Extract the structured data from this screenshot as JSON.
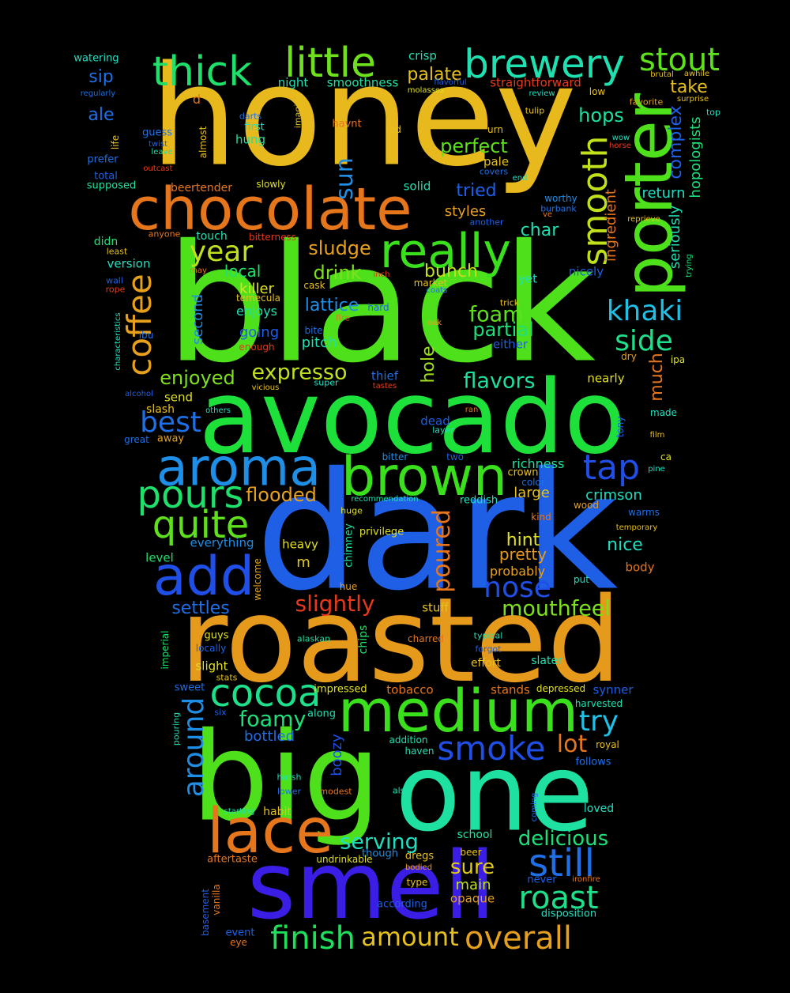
{
  "wordcloud": {
    "words": [
      {
        "text": "honey",
        "color": "#e8b91c"
      },
      {
        "text": "black",
        "color": "#4fe01c"
      },
      {
        "text": "dark",
        "color": "#1f5fe6"
      },
      {
        "text": "avocado",
        "color": "#1ee03a"
      },
      {
        "text": "roasted",
        "color": "#e69a1c"
      },
      {
        "text": "big",
        "color": "#4fe01c"
      },
      {
        "text": "one",
        "color": "#1ee0a0"
      },
      {
        "text": "smell",
        "color": "#3a1ee6"
      },
      {
        "text": "chocolate",
        "color": "#e6761c"
      },
      {
        "text": "porter",
        "color": "#4fe01c"
      },
      {
        "text": "brown",
        "color": "#3ae01c"
      },
      {
        "text": "aroma",
        "color": "#1e8ee6"
      },
      {
        "text": "medium",
        "color": "#3ae01c"
      },
      {
        "text": "lace",
        "color": "#e6761c"
      },
      {
        "text": "add",
        "color": "#1f4fe6"
      },
      {
        "text": "little",
        "color": "#6ee01c"
      },
      {
        "text": "thick",
        "color": "#1ee06a"
      },
      {
        "text": "brewery",
        "color": "#1ee0b0"
      },
      {
        "text": "stout",
        "color": "#5ee01c"
      },
      {
        "text": "really",
        "color": "#3ae01c"
      },
      {
        "text": "coffee",
        "color": "#e6a01c"
      },
      {
        "text": "quite",
        "color": "#5ee01c"
      },
      {
        "text": "pours",
        "color": "#1ee06a"
      },
      {
        "text": "smooth",
        "color": "#c0e01c"
      },
      {
        "text": "cocoa",
        "color": "#1ee08a"
      },
      {
        "text": "smoke",
        "color": "#1f4fe6"
      },
      {
        "text": "still",
        "color": "#1f6fe6"
      },
      {
        "text": "roast",
        "color": "#1ee08a"
      },
      {
        "text": "finish",
        "color": "#1ee05a"
      },
      {
        "text": "overall",
        "color": "#e6a01c"
      },
      {
        "text": "amount",
        "color": "#e6c01c"
      },
      {
        "text": "around",
        "color": "#1e8ee6"
      },
      {
        "text": "tap",
        "color": "#1f4fe6"
      },
      {
        "text": "nose",
        "color": "#1f4fe6"
      },
      {
        "text": "khaki",
        "color": "#1ec0e6"
      },
      {
        "text": "side",
        "color": "#1ee08a"
      },
      {
        "text": "sun",
        "color": "#1e8ee6"
      },
      {
        "text": "year",
        "color": "#c0e01c"
      },
      {
        "text": "best",
        "color": "#1f6fe6"
      },
      {
        "text": "mouthfeel",
        "color": "#7ee01c"
      },
      {
        "text": "try",
        "color": "#1ec0e6"
      },
      {
        "text": "foamy",
        "color": "#1ee07a"
      },
      {
        "text": "serving",
        "color": "#1ee0c0"
      },
      {
        "text": "delicious",
        "color": "#1ee07a"
      },
      {
        "text": "sure",
        "color": "#e0c81c"
      },
      {
        "text": "lot",
        "color": "#e6761c"
      },
      {
        "text": "slightly",
        "color": "#e63a1c"
      },
      {
        "text": "poured",
        "color": "#e6761c"
      },
      {
        "text": "expresso",
        "color": "#c0e01c"
      },
      {
        "text": "flavors",
        "color": "#1ee0a0"
      },
      {
        "text": "enjoyed",
        "color": "#7ee01c"
      },
      {
        "text": "foam",
        "color": "#5ee01c"
      },
      {
        "text": "partial",
        "color": "#1ee07a"
      },
      {
        "text": "hops",
        "color": "#1ee0a0"
      },
      {
        "text": "perfect",
        "color": "#5ee01c"
      },
      {
        "text": "palate",
        "color": "#e6c01c"
      },
      {
        "text": "flooded",
        "color": "#e6a01c"
      },
      {
        "text": "sludge",
        "color": "#e6a01c"
      },
      {
        "text": "drink",
        "color": "#7ee01c"
      },
      {
        "text": "bunch",
        "color": "#c0e01c"
      },
      {
        "text": "lattice",
        "color": "#1e8ee6"
      },
      {
        "text": "char",
        "color": "#1ee0b0"
      },
      {
        "text": "hint",
        "color": "#e0e01c"
      },
      {
        "text": "nice",
        "color": "#1ee0c0"
      },
      {
        "text": "pretty",
        "color": "#e69a1c"
      },
      {
        "text": "settles",
        "color": "#1e6ee6"
      },
      {
        "text": "crimson",
        "color": "#1ee0c0"
      },
      {
        "text": "hole",
        "color": "#a0e01c"
      },
      {
        "text": "much",
        "color": "#e6761c"
      },
      {
        "text": "richness",
        "color": "#1ee0a0"
      },
      {
        "text": "large",
        "color": "#e6c01c"
      },
      {
        "text": "tried",
        "color": "#1f5fe6"
      },
      {
        "text": "styles",
        "color": "#e6a01c"
      },
      {
        "text": "take",
        "color": "#e6c01c"
      },
      {
        "text": "complex",
        "color": "#1f5fe6"
      },
      {
        "text": "seriously",
        "color": "#1ee0b0"
      },
      {
        "text": "hopologists",
        "color": "#1ee07a"
      },
      {
        "text": "return",
        "color": "#1ee0c0"
      },
      {
        "text": "ingredient",
        "color": "#e6761c"
      },
      {
        "text": "local",
        "color": "#1ee06a"
      },
      {
        "text": "killer",
        "color": "#e0e01c"
      },
      {
        "text": "enjoys",
        "color": "#1ee0b0"
      },
      {
        "text": "going",
        "color": "#1f5fe6"
      },
      {
        "text": "pitch",
        "color": "#1ee0b0"
      },
      {
        "text": "second",
        "color": "#1e8ee6"
      },
      {
        "text": "sip",
        "color": "#1f6fe6"
      },
      {
        "text": "ale",
        "color": "#1f6fe6"
      },
      {
        "text": "hung",
        "color": "#1ee0a0"
      },
      {
        "text": "crisp",
        "color": "#1ee0b0"
      },
      {
        "text": "night",
        "color": "#1ee0b0"
      },
      {
        "text": "smoothness",
        "color": "#1ee0a0"
      },
      {
        "text": "straightforward",
        "color": "#e63a1c"
      },
      {
        "text": "pale",
        "color": "#e6c01c"
      },
      {
        "text": "solid",
        "color": "#1ee0b0"
      },
      {
        "text": "boozy",
        "color": "#1f4fe6"
      },
      {
        "text": "bottled",
        "color": "#1f6fe6"
      },
      {
        "text": "stuff",
        "color": "#e6c01c"
      },
      {
        "text": "heavy",
        "color": "#e0e01c"
      },
      {
        "text": "m",
        "color": "#e0c81c"
      },
      {
        "text": "probably",
        "color": "#e6a01c"
      },
      {
        "text": "body",
        "color": "#e6761c"
      },
      {
        "text": "level",
        "color": "#1ee06a"
      },
      {
        "text": "everything",
        "color": "#1e8ee6"
      },
      {
        "text": "main",
        "color": "#c0e01c"
      },
      {
        "text": "opaque",
        "color": "#e6a01c"
      },
      {
        "text": "tobacco",
        "color": "#e6761c"
      },
      {
        "text": "stands",
        "color": "#e6761c"
      },
      {
        "text": "depressed",
        "color": "#e0e01c"
      },
      {
        "text": "synner",
        "color": "#1e5ee6"
      },
      {
        "text": "harvested",
        "color": "#1ee0b0"
      },
      {
        "text": "slight",
        "color": "#e0e01c"
      },
      {
        "text": "guys",
        "color": "#e0e01c"
      },
      {
        "text": "locally",
        "color": "#1f5fe6"
      },
      {
        "text": "chips",
        "color": "#1ee06a"
      },
      {
        "text": "imperial",
        "color": "#1ee06a"
      },
      {
        "text": "impressed",
        "color": "#e0e01c"
      },
      {
        "text": "along",
        "color": "#1ee0b0"
      },
      {
        "text": "addition",
        "color": "#1ee0b0"
      },
      {
        "text": "haven",
        "color": "#1ee0b0"
      },
      {
        "text": "follows",
        "color": "#1f6fe6"
      },
      {
        "text": "loved",
        "color": "#1ee0c0"
      },
      {
        "text": "school",
        "color": "#1ee0a0"
      },
      {
        "text": "beer",
        "color": "#e6c01c"
      },
      {
        "text": "dregs",
        "color": "#e6c01c"
      },
      {
        "text": "though",
        "color": "#1e8ee6"
      },
      {
        "text": "undrinkable",
        "color": "#e0e01c"
      },
      {
        "text": "aftertaste",
        "color": "#e6761c"
      },
      {
        "text": "habit",
        "color": "#e6c01c"
      },
      {
        "text": "according",
        "color": "#1f5fe6"
      },
      {
        "text": "disposition",
        "color": "#1ee0c0"
      },
      {
        "text": "never",
        "color": "#1f5fe6"
      },
      {
        "text": "type",
        "color": "#e6c01c"
      },
      {
        "text": "event",
        "color": "#1f5fe6"
      },
      {
        "text": "eye",
        "color": "#e6761c"
      },
      {
        "text": "basement",
        "color": "#1f5fe6"
      },
      {
        "text": "vanilla",
        "color": "#e6761c"
      },
      {
        "text": "beertender",
        "color": "#e6761c"
      },
      {
        "text": "touch",
        "color": "#1ee0b0"
      },
      {
        "text": "bitterness",
        "color": "#e63a1c"
      },
      {
        "text": "didn",
        "color": "#1ee07a"
      },
      {
        "text": "version",
        "color": "#1ee0c0"
      },
      {
        "text": "yet",
        "color": "#1ee0c0"
      },
      {
        "text": "nicely",
        "color": "#1f5fe6"
      },
      {
        "text": "either",
        "color": "#1f5fe6"
      },
      {
        "text": "nearly",
        "color": "#e0e01c"
      },
      {
        "text": "thief",
        "color": "#1e6ee6"
      },
      {
        "text": "send",
        "color": "#e0e01c"
      },
      {
        "text": "slash",
        "color": "#e6c01c"
      },
      {
        "text": "away",
        "color": "#e6a01c"
      },
      {
        "text": "dead",
        "color": "#1f5fe6"
      },
      {
        "text": "layer",
        "color": "#1ee0c0"
      },
      {
        "text": "bitter",
        "color": "#1e8ee6"
      },
      {
        "text": "two",
        "color": "#1f5fe6"
      },
      {
        "text": "crown",
        "color": "#e6c01c"
      },
      {
        "text": "color",
        "color": "#1f6fe6"
      },
      {
        "text": "reddish",
        "color": "#1ee0c0"
      },
      {
        "text": "recommendation",
        "color": "#1ee0b0"
      },
      {
        "text": "privilege",
        "color": "#e0e01c"
      },
      {
        "text": "huge",
        "color": "#e0e01c"
      },
      {
        "text": "chimney",
        "color": "#1ee0a0"
      },
      {
        "text": "welcome",
        "color": "#e6a01c"
      },
      {
        "text": "hue",
        "color": "#e6a01c"
      },
      {
        "text": "charred",
        "color": "#e6761c"
      },
      {
        "text": "typical",
        "color": "#1ee0b0"
      },
      {
        "text": "forgot",
        "color": "#1f5fe6"
      },
      {
        "text": "effort",
        "color": "#e6c01c"
      },
      {
        "text": "slater",
        "color": "#1ee0b0"
      },
      {
        "text": "alaskan",
        "color": "#1ee0a0"
      },
      {
        "text": "stats",
        "color": "#e6c01c"
      },
      {
        "text": "sweet",
        "color": "#1e6ee6"
      },
      {
        "text": "six",
        "color": "#1f5fe6"
      },
      {
        "text": "pouring",
        "color": "#1ee0b0"
      },
      {
        "text": "harsh",
        "color": "#1ee0c0"
      },
      {
        "text": "lower",
        "color": "#1f6fe6"
      },
      {
        "text": "modest",
        "color": "#e6761c"
      },
      {
        "text": "also",
        "color": "#1ee0b0"
      },
      {
        "text": "starting",
        "color": "#1ee0b0"
      },
      {
        "text": "coming",
        "color": "#1f6fe6"
      },
      {
        "text": "royal",
        "color": "#e6c01c"
      },
      {
        "text": "bodied",
        "color": "#e6a01c"
      },
      {
        "text": "ironfire",
        "color": "#e6761c"
      },
      {
        "text": "watering",
        "color": "#1ee0c0"
      },
      {
        "text": "regularly",
        "color": "#1f6fe6"
      },
      {
        "text": "d",
        "color": "#e6761c"
      },
      {
        "text": "guess",
        "color": "#1f6fe6"
      },
      {
        "text": "twist",
        "color": "#1f5fe6"
      },
      {
        "text": "leave",
        "color": "#1ee0a0"
      },
      {
        "text": "life",
        "color": "#e6c01c"
      },
      {
        "text": "prefer",
        "color": "#1f6fe6"
      },
      {
        "text": "outcast",
        "color": "#e63a1c"
      },
      {
        "text": "total",
        "color": "#1f5fe6"
      },
      {
        "text": "supposed",
        "color": "#1ee0a0"
      },
      {
        "text": "slowly",
        "color": "#e0e01c"
      },
      {
        "text": "almost",
        "color": "#e6c01c"
      },
      {
        "text": "darts",
        "color": "#1f6fe6"
      },
      {
        "text": "first",
        "color": "#1ee0c0"
      },
      {
        "text": "imagine",
        "color": "#e6c01c"
      },
      {
        "text": "havnt",
        "color": "#e6761c"
      },
      {
        "text": "red",
        "color": "#e6c01c"
      },
      {
        "text": "urn",
        "color": "#e6c01c"
      },
      {
        "text": "flavorful",
        "color": "#1f5fe6"
      },
      {
        "text": "molasses",
        "color": "#e0e01c"
      },
      {
        "text": "review",
        "color": "#1ee0c0"
      },
      {
        "text": "tulip",
        "color": "#e6c01c"
      },
      {
        "text": "covers",
        "color": "#1f6fe6"
      },
      {
        "text": "end",
        "color": "#1ee0c0"
      },
      {
        "text": "low",
        "color": "#e6c01c"
      },
      {
        "text": "favorite",
        "color": "#e6a01c"
      },
      {
        "text": "wow",
        "color": "#1ee0c0"
      },
      {
        "text": "horse",
        "color": "#e63a1c"
      },
      {
        "text": "brutal",
        "color": "#e6c01c"
      },
      {
        "text": "awhile",
        "color": "#e6c01c"
      },
      {
        "text": "surprise",
        "color": "#e6c01c"
      },
      {
        "text": "top",
        "color": "#1ee0c0"
      },
      {
        "text": "worthy",
        "color": "#1e8ee6"
      },
      {
        "text": "burbank",
        "color": "#1f6fe6"
      },
      {
        "text": "ve",
        "color": "#e6761c"
      },
      {
        "text": "another",
        "color": "#1f5fe6"
      },
      {
        "text": "reprieve",
        "color": "#e6c01c"
      },
      {
        "text": "trying",
        "color": "#1ee07a"
      },
      {
        "text": "anyone",
        "color": "#e6761c"
      },
      {
        "text": "least",
        "color": "#e6c01c"
      },
      {
        "text": "may",
        "color": "#e6761c"
      },
      {
        "text": "wall",
        "color": "#1f5fe6"
      },
      {
        "text": "rope",
        "color": "#e63a1c"
      },
      {
        "text": "cask",
        "color": "#e6c01c"
      },
      {
        "text": "inch",
        "color": "#e63a1c"
      },
      {
        "text": "market",
        "color": "#e6c01c"
      },
      {
        "text": "coats",
        "color": "#1f6fe6"
      },
      {
        "text": "temecula",
        "color": "#e6c01c"
      },
      {
        "text": "hard",
        "color": "#1f5fe6"
      },
      {
        "text": "trick",
        "color": "#e6c01c"
      },
      {
        "text": "fire",
        "color": "#e6761c"
      },
      {
        "text": "oak",
        "color": "#e6a01c"
      },
      {
        "text": "bite",
        "color": "#1f6fe6"
      },
      {
        "text": "characteristics",
        "color": "#1ee0c0"
      },
      {
        "text": "ibu",
        "color": "#1f6fe6"
      },
      {
        "text": "enough",
        "color": "#e63a1c"
      },
      {
        "text": "dry",
        "color": "#e6a01c"
      },
      {
        "text": "ipa",
        "color": "#e0e01c"
      },
      {
        "text": "tastes",
        "color": "#e63a1c"
      },
      {
        "text": "super",
        "color": "#1ee0c0"
      },
      {
        "text": "alcohol",
        "color": "#1f5fe6"
      },
      {
        "text": "vicious",
        "color": "#e6c01c"
      },
      {
        "text": "others",
        "color": "#1ee0c0"
      },
      {
        "text": "ran",
        "color": "#e6761c"
      },
      {
        "text": "made",
        "color": "#1ee0c0"
      },
      {
        "text": "tony",
        "color": "#1f5fe6"
      },
      {
        "text": "film",
        "color": "#e6c01c"
      },
      {
        "text": "great",
        "color": "#1e6ee6"
      },
      {
        "text": "ca",
        "color": "#e0e01c"
      },
      {
        "text": "pine",
        "color": "#1ee0c0"
      },
      {
        "text": "wood",
        "color": "#e6a01c"
      },
      {
        "text": "warms",
        "color": "#1f6fe6"
      },
      {
        "text": "kind",
        "color": "#e6761c"
      },
      {
        "text": "temporary",
        "color": "#e6c01c"
      },
      {
        "text": "put",
        "color": "#1ee0c0"
      }
    ]
  }
}
